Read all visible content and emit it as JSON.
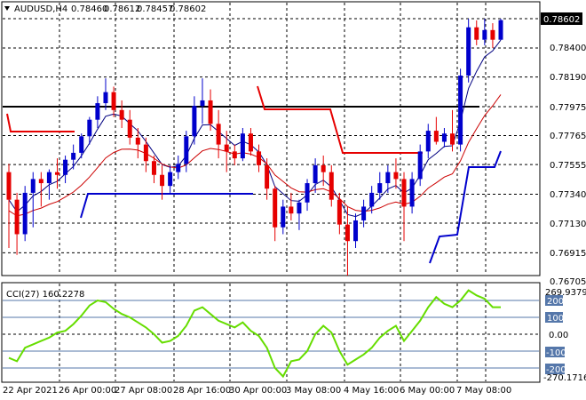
{
  "header": {
    "symbol": "AUDUSD,H4",
    "open": "0.78460",
    "high": "0.78612",
    "low": "0.78457",
    "close": "0.78602"
  },
  "price_axis": {
    "labels": [
      "0.78400",
      "0.78190",
      "0.77975",
      "0.77765",
      "0.77555",
      "0.77340",
      "0.77130",
      "0.76915",
      "0.76705"
    ],
    "current_price": "0.78602"
  },
  "indicator": {
    "title": "CCI(27) 160.2278",
    "axis_labels": [
      "269.9379",
      "200",
      "100",
      "0.00",
      "-100",
      "-200",
      "-270.1716"
    ]
  },
  "time_axis": {
    "labels": [
      "22 Apr 2021",
      "26 Apr 00:00",
      "27 Apr 08:00",
      "28 Apr 16:00",
      "30 Apr 00:00",
      "3 May 08:00",
      "4 May 16:00",
      "6 May 00:00",
      "7 May 08:00"
    ]
  },
  "colors": {
    "bull": "#0000cc",
    "bear": "#e60000",
    "ma_fast": "#000080",
    "ma_slow": "#cc0000",
    "cci": "#66dd00",
    "level_line": "#000000",
    "badge_bg": "#5577aa"
  },
  "chart_data": {
    "type": "candlestick",
    "y_range": [
      0.76705,
      0.78612
    ],
    "candles": [
      [
        0.775,
        0.7756,
        0.7695,
        0.773
      ],
      [
        0.773,
        0.7735,
        0.769,
        0.7705
      ],
      [
        0.7705,
        0.774,
        0.77,
        0.7735
      ],
      [
        0.7735,
        0.775,
        0.771,
        0.7745
      ],
      [
        0.7745,
        0.775,
        0.7725,
        0.7742
      ],
      [
        0.7742,
        0.7752,
        0.773,
        0.775
      ],
      [
        0.775,
        0.776,
        0.7738,
        0.7748
      ],
      [
        0.7748,
        0.7762,
        0.7742,
        0.7759
      ],
      [
        0.7759,
        0.777,
        0.7752,
        0.7764
      ],
      [
        0.7764,
        0.7778,
        0.776,
        0.7776
      ],
      [
        0.7776,
        0.779,
        0.777,
        0.7788
      ],
      [
        0.7788,
        0.7805,
        0.7782,
        0.78
      ],
      [
        0.78,
        0.7818,
        0.7795,
        0.7808
      ],
      [
        0.7808,
        0.7812,
        0.779,
        0.7795
      ],
      [
        0.7795,
        0.7802,
        0.7782,
        0.7788
      ],
      [
        0.7788,
        0.7795,
        0.777,
        0.7775
      ],
      [
        0.7775,
        0.7782,
        0.776,
        0.777
      ],
      [
        0.777,
        0.7775,
        0.775,
        0.7758
      ],
      [
        0.7758,
        0.7762,
        0.7742,
        0.7748
      ],
      [
        0.7748,
        0.7755,
        0.773,
        0.774
      ],
      [
        0.774,
        0.7755,
        0.7735,
        0.775
      ],
      [
        0.775,
        0.7762,
        0.7745,
        0.7756
      ],
      [
        0.7756,
        0.778,
        0.775,
        0.7776
      ],
      [
        0.7776,
        0.7805,
        0.777,
        0.7798
      ],
      [
        0.7798,
        0.7818,
        0.7785,
        0.7802
      ],
      [
        0.7802,
        0.781,
        0.778,
        0.7785
      ],
      [
        0.7785,
        0.7795,
        0.776,
        0.777
      ],
      [
        0.777,
        0.778,
        0.775,
        0.7765
      ],
      [
        0.7765,
        0.777,
        0.7755,
        0.776
      ],
      [
        0.776,
        0.7782,
        0.7758,
        0.7778
      ],
      [
        0.7778,
        0.7782,
        0.7762,
        0.7765
      ],
      [
        0.7765,
        0.777,
        0.775,
        0.7755
      ],
      [
        0.7755,
        0.776,
        0.773,
        0.7738
      ],
      [
        0.7738,
        0.774,
        0.77,
        0.771
      ],
      [
        0.771,
        0.773,
        0.7705,
        0.7725
      ],
      [
        0.7725,
        0.7735,
        0.7715,
        0.772
      ],
      [
        0.772,
        0.773,
        0.7708,
        0.7728
      ],
      [
        0.7728,
        0.7745,
        0.7722,
        0.7742
      ],
      [
        0.7742,
        0.776,
        0.7735,
        0.7755
      ],
      [
        0.7755,
        0.7762,
        0.774,
        0.775
      ],
      [
        0.775,
        0.7755,
        0.7725,
        0.773
      ],
      [
        0.773,
        0.7735,
        0.7705,
        0.7712
      ],
      [
        0.7712,
        0.7725,
        0.7675,
        0.77
      ],
      [
        0.77,
        0.772,
        0.7695,
        0.7715
      ],
      [
        0.7715,
        0.773,
        0.771,
        0.7725
      ],
      [
        0.7725,
        0.774,
        0.772,
        0.7735
      ],
      [
        0.7735,
        0.775,
        0.773,
        0.7742
      ],
      [
        0.7742,
        0.7755,
        0.7735,
        0.775
      ],
      [
        0.775,
        0.776,
        0.7738,
        0.7745
      ],
      [
        0.7745,
        0.775,
        0.77,
        0.7725
      ],
      [
        0.7725,
        0.775,
        0.772,
        0.7745
      ],
      [
        0.7745,
        0.777,
        0.774,
        0.7765
      ],
      [
        0.7765,
        0.7785,
        0.776,
        0.778
      ],
      [
        0.778,
        0.779,
        0.777,
        0.7772
      ],
      [
        0.7772,
        0.7782,
        0.7768,
        0.7778
      ],
      [
        0.7778,
        0.7795,
        0.7765,
        0.777
      ],
      [
        0.777,
        0.7825,
        0.7765,
        0.782
      ],
      [
        0.782,
        0.78612,
        0.7815,
        0.7855
      ],
      [
        0.7855,
        0.786,
        0.7842,
        0.7846
      ],
      [
        0.7846,
        0.78612,
        0.7842,
        0.7853
      ],
      [
        0.7853,
        0.7858,
        0.784,
        0.7846
      ],
      [
        0.7846,
        0.78612,
        0.78457,
        0.78602
      ]
    ],
    "cci_values": [
      -140,
      -160,
      -80,
      -60,
      -40,
      -20,
      10,
      20,
      60,
      110,
      170,
      200,
      190,
      150,
      120,
      100,
      70,
      40,
      0,
      -50,
      -40,
      -10,
      50,
      140,
      160,
      120,
      80,
      60,
      40,
      70,
      20,
      -10,
      -80,
      -200,
      -250,
      -160,
      -150,
      -100,
      0,
      50,
      10,
      -100,
      -180,
      -150,
      -120,
      -80,
      -20,
      20,
      50,
      -40,
      20,
      80,
      160,
      220,
      180,
      160,
      200,
      260,
      230,
      210,
      160,
      160
    ],
    "levels": [
      -200,
      -100,
      0,
      100,
      200
    ],
    "level_line_price": 0.77975,
    "title": "",
    "xlabel": "",
    "ylabel": ""
  }
}
